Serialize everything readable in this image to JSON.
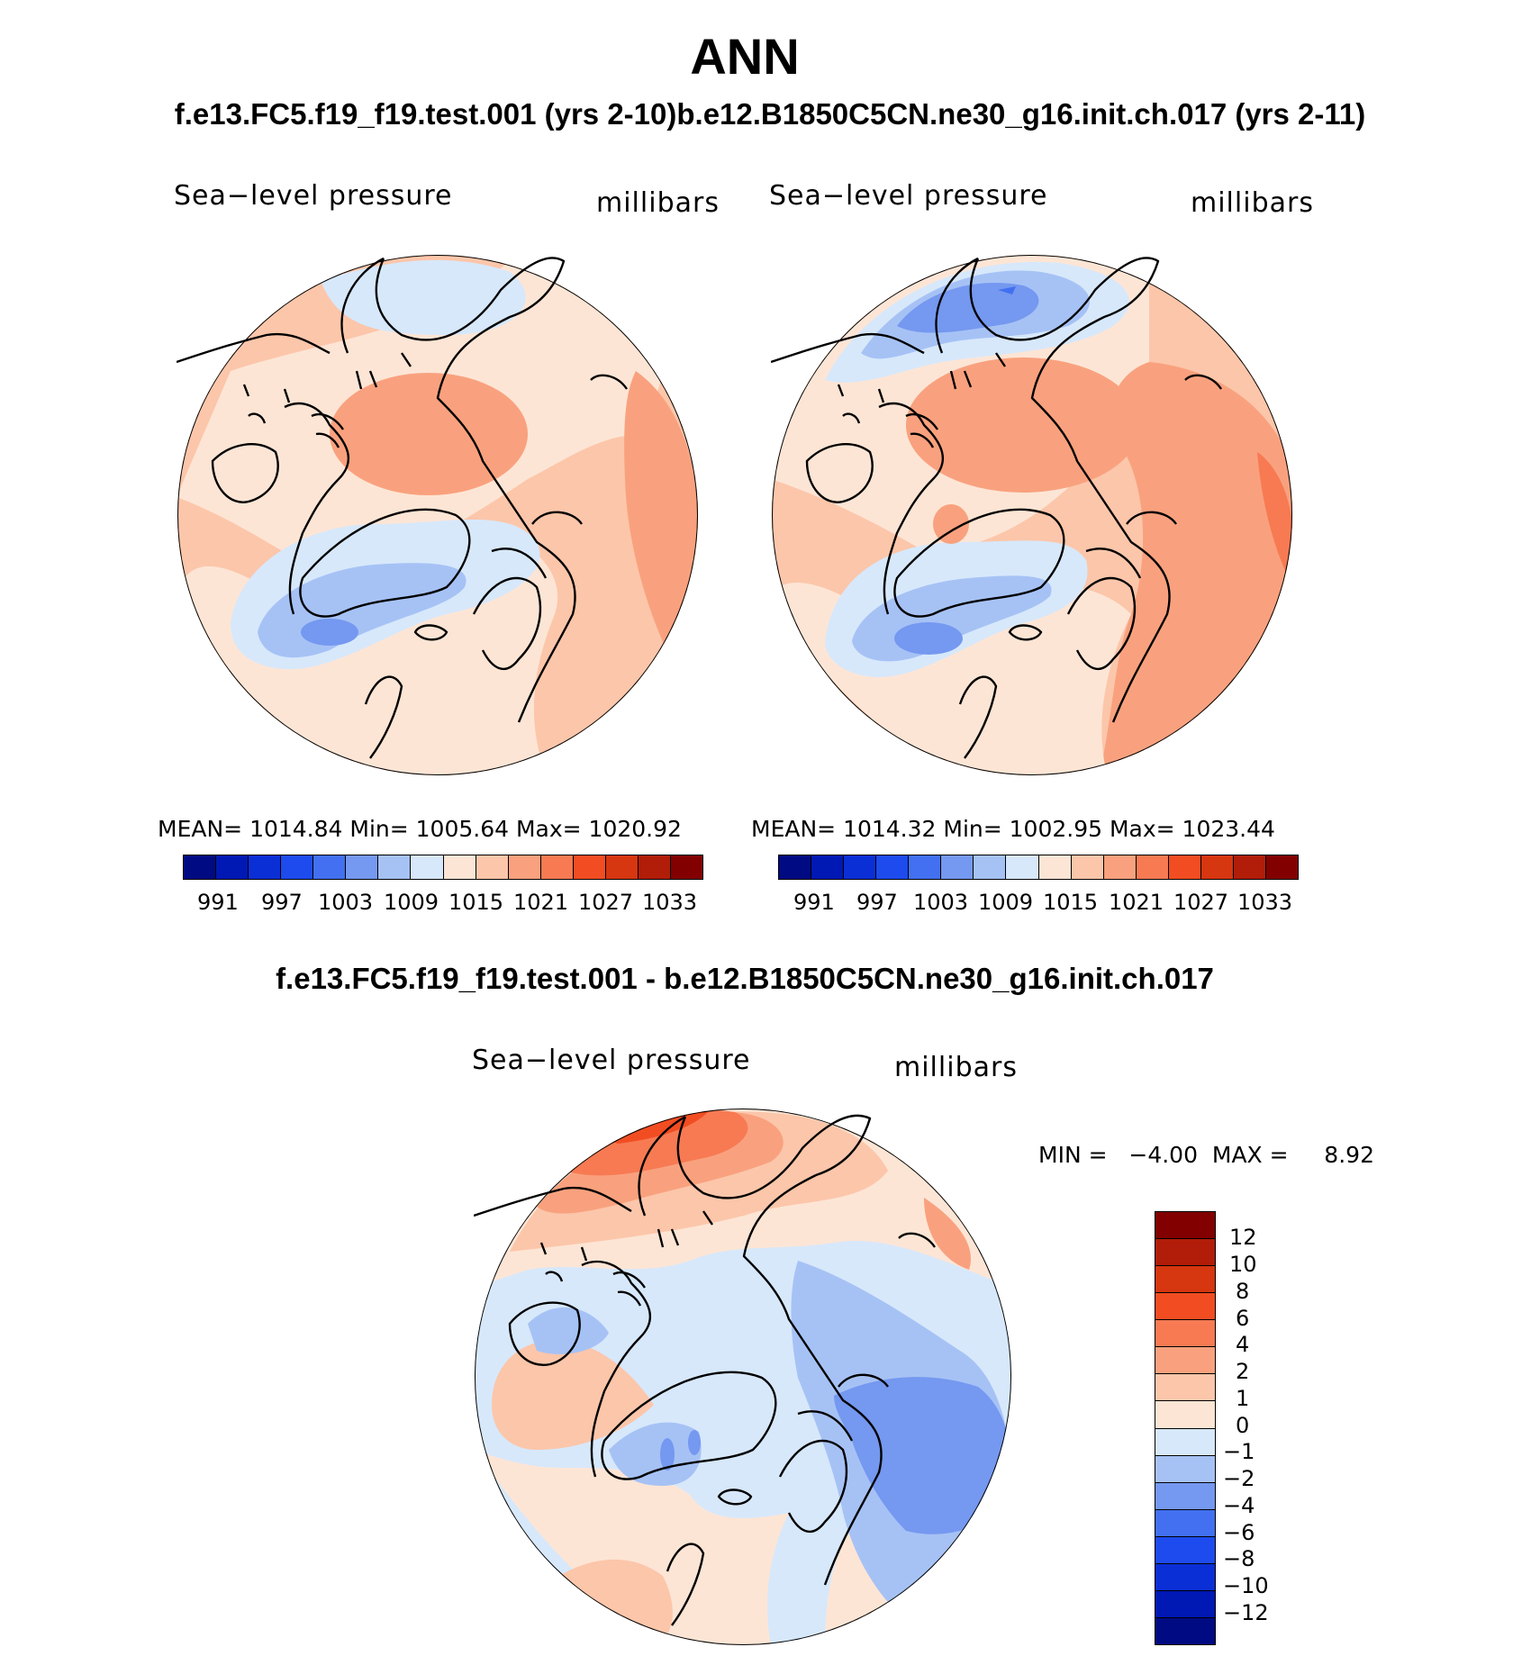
{
  "title": "ANN",
  "subtitle": "f.e13.FC5.f19_f19.test.001 (yrs 2-10)b.e12.B1850C5CN.ne30_g16.init.ch.017 (yrs 2-11)",
  "diff_title": "f.e13.FC5.f19_f19.test.001 - b.e12.B1850C5CN.ne30_g16.init.ch.017",
  "panels": [
    {
      "variable": "Sea−level pressure",
      "units": "millibars",
      "stats": "MEAN= 1014.84   Min= 1005.64   Max= 1020.92",
      "colorbar_labels": [
        "991",
        "997",
        "1003",
        "1009",
        "1015",
        "1021",
        "1027",
        "1033"
      ]
    },
    {
      "variable": "Sea−level pressure",
      "units": "millibars",
      "stats": "MEAN= 1014.32   Min= 1002.95   Max= 1023.44",
      "colorbar_labels": [
        "991",
        "997",
        "1003",
        "1009",
        "1015",
        "1021",
        "1027",
        "1033"
      ]
    }
  ],
  "diff_panel": {
    "variable": "Sea−level pressure",
    "units": "millibars",
    "minmax": "MIN =   −4.00  MAX =     8.92",
    "colorbar_labels": [
      "12",
      "10",
      "8",
      "6",
      "4",
      "2",
      "1",
      "0",
      "−1",
      "−2",
      "−4",
      "−6",
      "−8",
      "−10",
      "−12"
    ]
  },
  "colors": {
    "mean_scale": [
      "#000a82",
      "#0018b4",
      "#0b2fd6",
      "#1d4bee",
      "#4270f0",
      "#7598f0",
      "#a6c2f5",
      "#d7e8fb",
      "#fde5d5",
      "#fcc6aa",
      "#f9a17e",
      "#f77a53",
      "#f24d22",
      "#d63610",
      "#b11d08",
      "#820000"
    ],
    "diff_scale": [
      "#820000",
      "#b11d08",
      "#d63610",
      "#f24d22",
      "#f77a53",
      "#f9a17e",
      "#fcc6aa",
      "#fde5d5",
      "#d7e8fb",
      "#a6c2f5",
      "#7598f0",
      "#4270f0",
      "#1d4bee",
      "#0b2fd6",
      "#0018b4",
      "#000a82"
    ]
  }
}
